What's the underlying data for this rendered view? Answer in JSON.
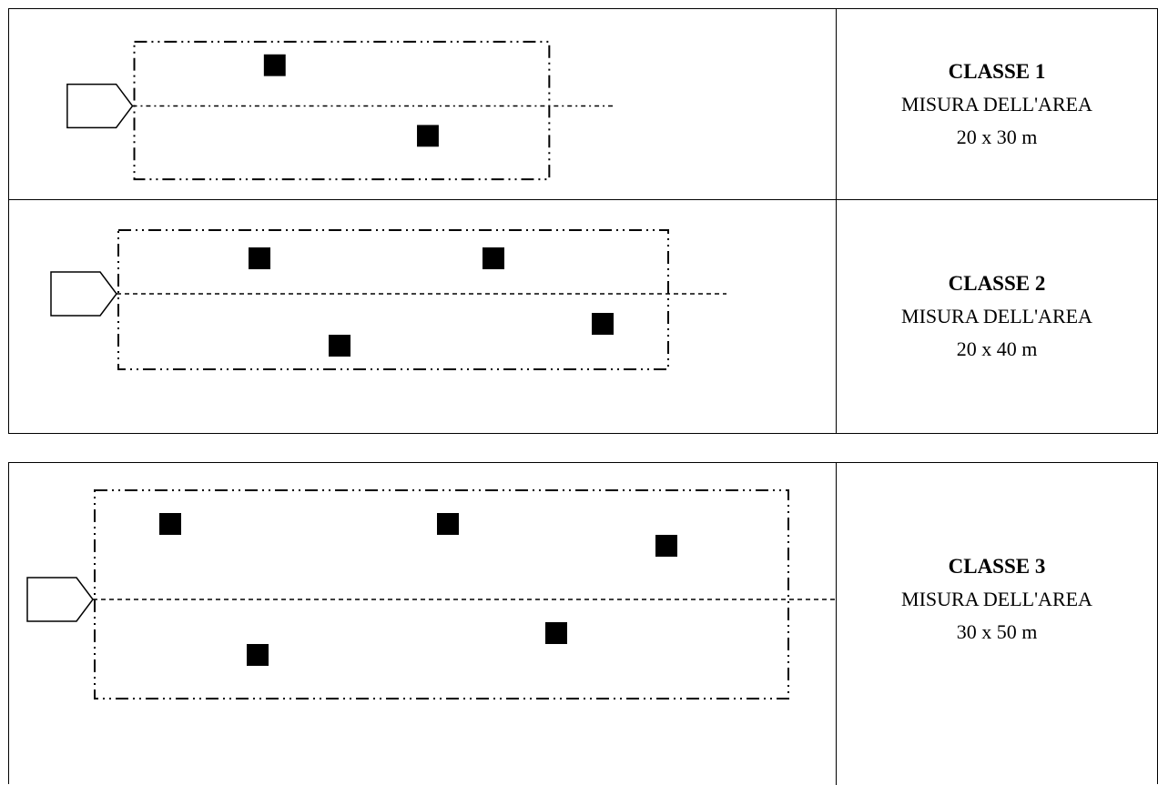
{
  "classes": [
    {
      "title": "CLASSE 1",
      "area_label": "MISURA DELL'AREA",
      "size": "20 x 30 m",
      "plant_count": 2
    },
    {
      "title": "CLASSE 2",
      "area_label": "MISURA DELL'AREA",
      "size": "20 x 40 m",
      "plant_count": 4
    },
    {
      "title": "CLASSE 3",
      "area_label": "MISURA DELL'AREA",
      "size": "30 x 50 m",
      "plant_count": 5
    }
  ],
  "colors": {
    "line": "#000000",
    "square": "#000000",
    "background": "#ffffff"
  },
  "icons": {
    "marker": "arrow-pentagon-icon",
    "plant": "filled-square-icon"
  }
}
